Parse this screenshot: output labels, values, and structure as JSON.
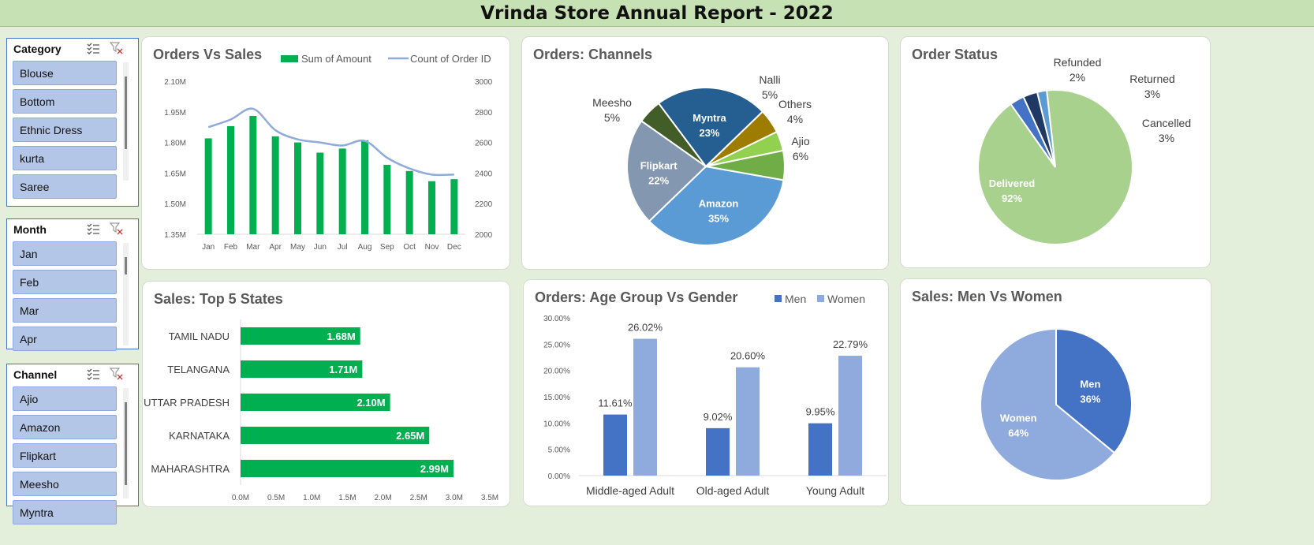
{
  "header": {
    "title": "Vrinda Store Annual Report - 2022"
  },
  "slicers": [
    {
      "title": "Category",
      "items": [
        "Blouse",
        "Bottom",
        "Ethnic Dress",
        "kurta",
        "Saree"
      ]
    },
    {
      "title": "Month",
      "items": [
        "Jan",
        "Feb",
        "Mar",
        "Apr"
      ]
    },
    {
      "title": "Channel",
      "items": [
        "Ajio",
        "Amazon",
        "Flipkart",
        "Meesho",
        "Myntra"
      ]
    }
  ],
  "colors": {
    "green": "#00b050",
    "line": "#8faadc",
    "men": "#4472c4",
    "women": "#8faadc"
  },
  "chart_data": [
    {
      "id": "orders_vs_sales",
      "type": "bar",
      "title": "Orders Vs Sales",
      "categories": [
        "Jan",
        "Feb",
        "Mar",
        "Apr",
        "May",
        "Jun",
        "Jul",
        "Aug",
        "Sep",
        "Oct",
        "Nov",
        "Dec"
      ],
      "series": [
        {
          "name": "Sum of Amount",
          "kind": "bar",
          "axis": "left",
          "values": [
            1.82,
            1.88,
            1.93,
            1.83,
            1.8,
            1.75,
            1.77,
            1.81,
            1.69,
            1.66,
            1.61,
            1.62
          ]
        },
        {
          "name": "Count of Order ID",
          "kind": "line",
          "axis": "right",
          "values": [
            2700,
            2750,
            2820,
            2680,
            2620,
            2600,
            2580,
            2610,
            2500,
            2430,
            2390,
            2390
          ]
        }
      ],
      "y_left": {
        "min": 1.35,
        "max": 2.1,
        "ticks": [
          "2.10M",
          "1.95M",
          "1.80M",
          "1.65M",
          "1.50M",
          "1.35M"
        ]
      },
      "y_right": {
        "min": 2000,
        "max": 3000,
        "ticks": [
          "3000",
          "2800",
          "2600",
          "2400",
          "2200",
          "2000"
        ]
      },
      "legend": "top-right"
    },
    {
      "id": "orders_channels",
      "type": "pie",
      "title": "Orders: Channels",
      "slices": [
        {
          "label": "Amazon",
          "value": 35,
          "pct": "35%",
          "color": "#5b9bd5"
        },
        {
          "label": "Flipkart",
          "value": 22,
          "pct": "22%",
          "color": "#8497b0"
        },
        {
          "label": "Meesho",
          "value": 5,
          "pct": "5%",
          "color": "#435d29"
        },
        {
          "label": "Myntra",
          "value": 23,
          "pct": "23%",
          "color": "#255e91"
        },
        {
          "label": "Nalli",
          "value": 5,
          "pct": "5%",
          "color": "#9e7c00"
        },
        {
          "label": "Others",
          "value": 4,
          "pct": "4%",
          "color": "#92d050"
        },
        {
          "label": "Ajio",
          "value": 6,
          "pct": "6%",
          "color": "#70ad47"
        }
      ]
    },
    {
      "id": "order_status",
      "type": "pie",
      "title": "Order Status",
      "slices": [
        {
          "label": "Delivered",
          "value": 92,
          "pct": "92%",
          "color": "#a9d18e"
        },
        {
          "label": "Refunded",
          "value": 2,
          "pct": "2%",
          "color": "#5b9bd5"
        },
        {
          "label": "Returned",
          "value": 3,
          "pct": "3%",
          "color": "#203864"
        },
        {
          "label": "Cancelled",
          "value": 3,
          "pct": "3%",
          "color": "#4472c4"
        }
      ]
    },
    {
      "id": "top5_states",
      "type": "bar",
      "orientation": "horizontal",
      "title": "Sales: Top 5 States",
      "categories": [
        "TAMIL NADU",
        "TELANGANA",
        "UTTAR PRADESH",
        "KARNATAKA",
        "MAHARASHTRA"
      ],
      "values": [
        1.68,
        1.71,
        2.1,
        2.65,
        2.99
      ],
      "labels": [
        "1.68M",
        "1.71M",
        "2.10M",
        "2.65M",
        "2.99M"
      ],
      "xlim": [
        0,
        3.5
      ],
      "xticks": [
        "0.0M",
        "0.5M",
        "1.0M",
        "1.5M",
        "2.0M",
        "2.5M",
        "3.0M",
        "3.5M"
      ]
    },
    {
      "id": "age_vs_gender",
      "type": "bar",
      "title": "Orders: Age Group Vs Gender",
      "categories": [
        "Middle-aged Adult",
        "Old-aged Adult",
        "Young Adult"
      ],
      "series": [
        {
          "name": "Men",
          "values": [
            11.61,
            9.02,
            9.95
          ],
          "labels": [
            "11.61%",
            "9.02%",
            "9.95%"
          ]
        },
        {
          "name": "Women",
          "values": [
            26.02,
            20.6,
            22.79
          ],
          "labels": [
            "26.02%",
            "20.60%",
            "22.79%"
          ]
        }
      ],
      "ylim": [
        0,
        30
      ],
      "yticks": [
        "30.00%",
        "25.00%",
        "20.00%",
        "15.00%",
        "10.00%",
        "5.00%",
        "0.00%"
      ],
      "legend": "top-right"
    },
    {
      "id": "men_vs_women",
      "type": "pie",
      "title": "Sales: Men Vs Women",
      "slices": [
        {
          "label": "Men",
          "value": 36,
          "pct": "36%",
          "color": "#4472c4"
        },
        {
          "label": "Women",
          "value": 64,
          "pct": "64%",
          "color": "#8faadc"
        }
      ]
    }
  ]
}
